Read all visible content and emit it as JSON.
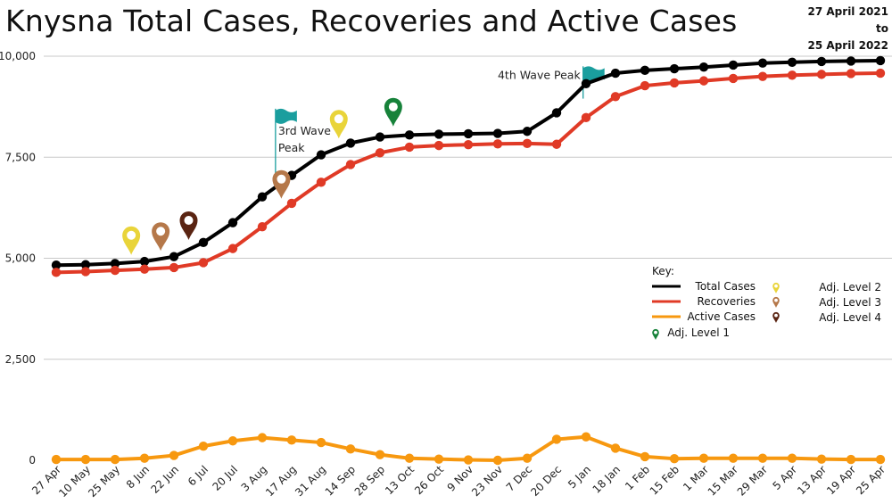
{
  "title": "Knysna Total Cases, Recoveries and Active Cases",
  "date_range": {
    "from": "27 April 2021",
    "joiner": "to",
    "to": "25 April 2022"
  },
  "colors": {
    "total": "#000000",
    "recoveries": "#e03a26",
    "active": "#f7980f",
    "grid": "#c8c8c8",
    "flag": "#1a9e9e",
    "level1": "#17823a",
    "level2": "#e9d43a",
    "level3": "#b5784a",
    "level4": "#5a2412"
  },
  "chart_data": {
    "type": "line",
    "title": "Knysna Total Cases, Recoveries and Active Cases",
    "categories": [
      "27 Apr",
      "10 May",
      "25 May",
      "8 Jun",
      "22 Jun",
      "6 Jul",
      "20 Jul",
      "3 Aug",
      "17 Aug",
      "31 Aug",
      "14 Sep",
      "28 Sep",
      "13 Oct",
      "26 Oct",
      "9 Nov",
      "23 Nov",
      "7 Dec",
      "20 Dec",
      "5 Jan",
      "18 Jan",
      "1 Feb",
      "15 Feb",
      "1 Mar",
      "15 Mar",
      "29 Mar",
      "5 Apr",
      "13 Apr",
      "19 Apr",
      "25 Apr"
    ],
    "y_ticks": [
      0,
      2500,
      5000,
      7500,
      10000
    ],
    "y_tick_labels": [
      "0",
      "2,500",
      "5,000",
      "7,500",
      "10,000"
    ],
    "ylim": [
      0,
      10000
    ],
    "grid": true,
    "legend_position": "right",
    "series": [
      {
        "name": "Total Cases",
        "color_key": "total",
        "values": [
          4830,
          4840,
          4870,
          4920,
          5040,
          5390,
          5880,
          6520,
          7050,
          7560,
          7850,
          8000,
          8050,
          8070,
          8080,
          8090,
          8140,
          8600,
          9320,
          9580,
          9650,
          9690,
          9730,
          9780,
          9830,
          9850,
          9870,
          9880,
          9890
        ]
      },
      {
        "name": "Recoveries",
        "color_key": "recoveries",
        "values": [
          4650,
          4670,
          4700,
          4730,
          4770,
          4890,
          5240,
          5780,
          6360,
          6880,
          7320,
          7610,
          7750,
          7790,
          7810,
          7830,
          7840,
          7820,
          8480,
          9000,
          9270,
          9340,
          9390,
          9450,
          9500,
          9530,
          9550,
          9570,
          9580
        ]
      },
      {
        "name": "Active Cases",
        "color_key": "active",
        "values": [
          20,
          20,
          20,
          50,
          120,
          350,
          480,
          560,
          500,
          440,
          280,
          140,
          50,
          30,
          10,
          0,
          50,
          520,
          580,
          300,
          90,
          40,
          50,
          50,
          50,
          50,
          30,
          20,
          20
        ]
      }
    ],
    "annotations": [
      {
        "text_lines": [
          "3rd Wave",
          "Peak"
        ],
        "x_index": 7.45,
        "y": 8700,
        "flag_base_y": 6900
      },
      {
        "text_lines": [
          "4th Wave Peak"
        ],
        "x_index": 17.9,
        "y": 9750,
        "flag_base_y": 8950
      }
    ],
    "markers": [
      {
        "level": "level2",
        "x_index": 2.55,
        "y": 4950
      },
      {
        "level": "level3",
        "x_index": 3.55,
        "y": 5050
      },
      {
        "level": "level4",
        "x_index": 4.5,
        "y": 5320
      },
      {
        "level": "level3",
        "x_index": 7.65,
        "y": 6340
      },
      {
        "level": "level2",
        "x_index": 9.6,
        "y": 7830
      },
      {
        "level": "level1",
        "x_index": 11.45,
        "y": 8130
      }
    ],
    "key": {
      "title": "Key:",
      "lines": [
        {
          "label": "Total Cases",
          "color_key": "total"
        },
        {
          "label": "Recoveries",
          "color_key": "recoveries"
        },
        {
          "label": "Active Cases",
          "color_key": "active"
        }
      ],
      "pins": [
        {
          "label": "Adj. Level 1",
          "color_key": "level1"
        },
        {
          "label": "Adj. Level 2",
          "color_key": "level2"
        },
        {
          "label": "Adj. Level 3",
          "color_key": "level3"
        },
        {
          "label": "Adj. Level 4",
          "color_key": "level4"
        }
      ]
    }
  }
}
